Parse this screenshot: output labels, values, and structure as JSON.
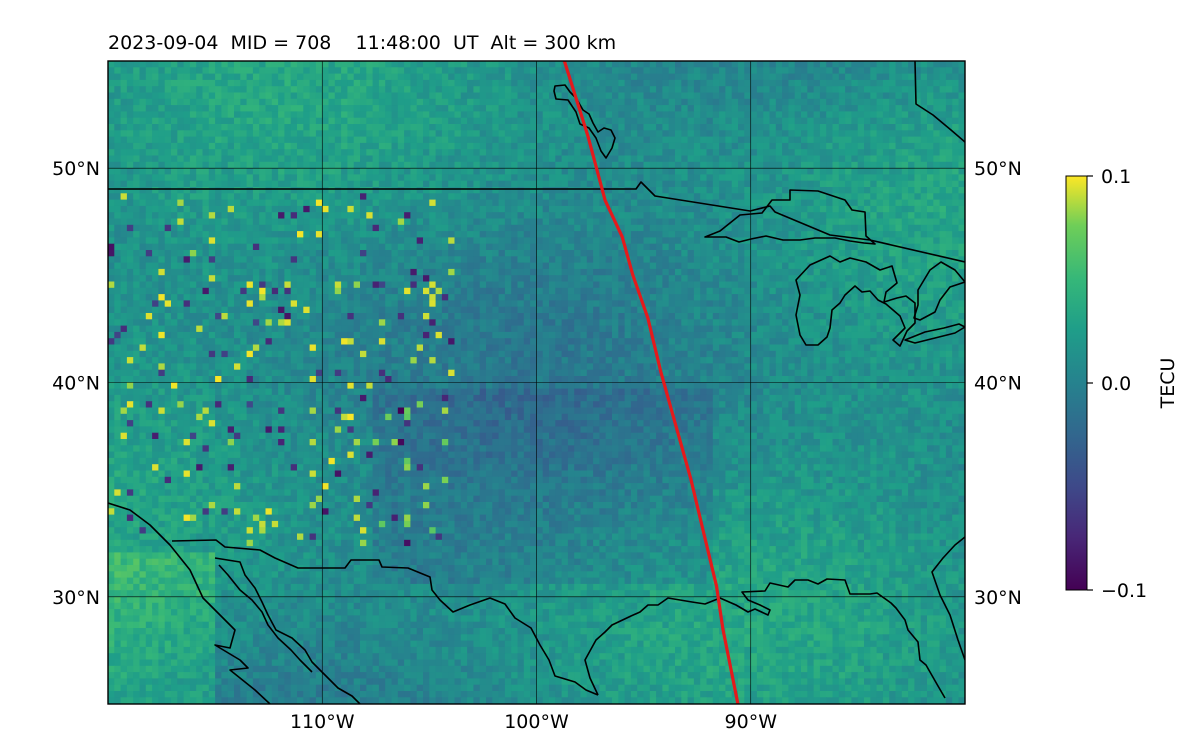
{
  "title": "2023-09-04  MID = 708    11:48:00  UT  Alt = 300 km",
  "map": {
    "lon_range": [
      -120,
      -80
    ],
    "lat_range": [
      25,
      55
    ],
    "lon_ticks": [
      {
        "lon": -110,
        "label": "110°W"
      },
      {
        "lon": -100,
        "label": "100°W"
      },
      {
        "lon": -90,
        "label": "90°W"
      }
    ],
    "lat_ticks": [
      {
        "lat": 50,
        "label": "50°N"
      },
      {
        "lat": 40,
        "label": "40°N"
      },
      {
        "lat": 30,
        "label": "30°N"
      }
    ],
    "track_color": "#e41a1c",
    "track_points": [
      [
        -98.7,
        55
      ],
      [
        -97.6,
        51.5
      ],
      [
        -96.8,
        48.5
      ],
      [
        -96.0,
        46.8
      ],
      [
        -95.5,
        45.0
      ],
      [
        -94.8,
        43.0
      ],
      [
        -94.2,
        40.5
      ],
      [
        -93.5,
        38.0
      ],
      [
        -92.8,
        35.5
      ],
      [
        -92.2,
        33.0
      ],
      [
        -91.6,
        30.5
      ],
      [
        -91.3,
        28.5
      ],
      [
        -90.9,
        26.5
      ],
      [
        -90.6,
        25
      ]
    ],
    "grid": true
  },
  "colorbar": {
    "label": "TECU",
    "colormap": "viridis",
    "min": -0.1,
    "max": 0.1,
    "ticks": [
      {
        "value": 0.1,
        "label": "0.1"
      },
      {
        "value": 0.0,
        "label": "0.0"
      },
      {
        "value": -0.1,
        "label": "−0.1"
      }
    ]
  }
}
